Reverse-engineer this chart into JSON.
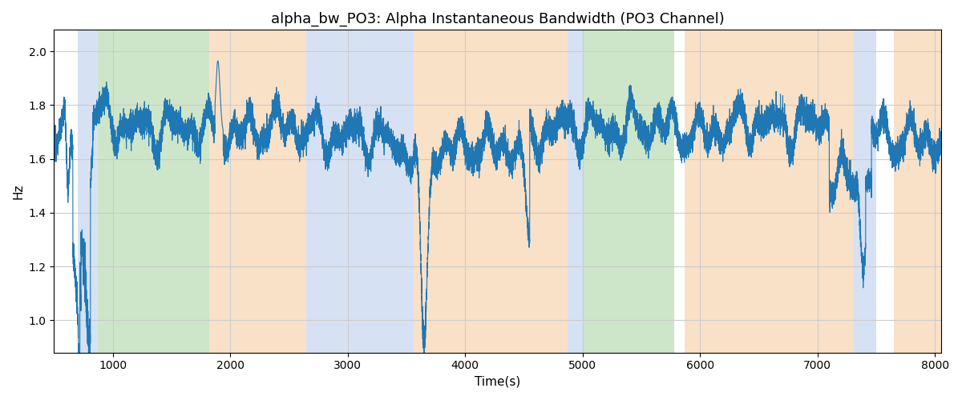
{
  "title": "alpha_bw_PO3: Alpha Instantaneous Bandwidth (PO3 Channel)",
  "xlabel": "Time(s)",
  "ylabel": "Hz",
  "xlim": [
    500,
    8050
  ],
  "ylim": [
    0.88,
    2.08
  ],
  "line_color": "#1f77b4",
  "line_width": 0.8,
  "background_bands": [
    {
      "xmin": 700,
      "xmax": 870,
      "color": "#aec6e8",
      "alpha": 0.5
    },
    {
      "xmin": 870,
      "xmax": 1820,
      "color": "#90c98a",
      "alpha": 0.45
    },
    {
      "xmin": 1820,
      "xmax": 2650,
      "color": "#f5c99a",
      "alpha": 0.55
    },
    {
      "xmin": 2650,
      "xmax": 3560,
      "color": "#aec6e8",
      "alpha": 0.5
    },
    {
      "xmin": 3560,
      "xmax": 4870,
      "color": "#f5c99a",
      "alpha": 0.55
    },
    {
      "xmin": 4870,
      "xmax": 5010,
      "color": "#aec6e8",
      "alpha": 0.5
    },
    {
      "xmin": 5010,
      "xmax": 5780,
      "color": "#90c98a",
      "alpha": 0.45
    },
    {
      "xmin": 5870,
      "xmax": 7300,
      "color": "#f5c99a",
      "alpha": 0.55
    },
    {
      "xmin": 7300,
      "xmax": 7500,
      "color": "#aec6e8",
      "alpha": 0.5
    },
    {
      "xmin": 7650,
      "xmax": 8050,
      "color": "#f5c99a",
      "alpha": 0.55
    }
  ],
  "grid": true,
  "grid_color": "#cccccc",
  "yticks": [
    1.0,
    1.2,
    1.4,
    1.6,
    1.8,
    2.0
  ],
  "xticks": [
    1000,
    2000,
    3000,
    4000,
    5000,
    6000,
    7000,
    8000
  ]
}
